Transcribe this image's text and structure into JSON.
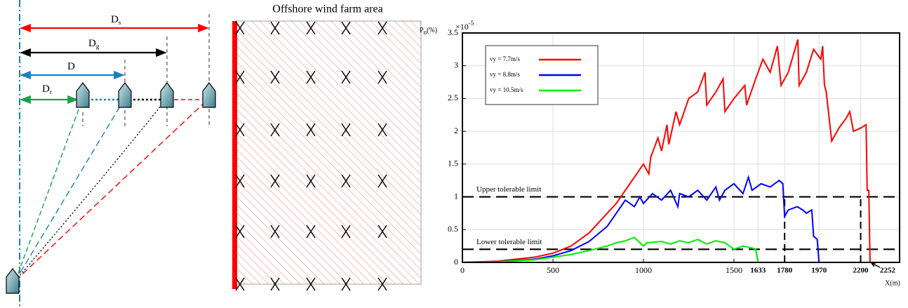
{
  "diagram": {
    "area_label": "Offshore wind farm area",
    "distances": [
      {
        "symbol": "D",
        "sub": "s"
      },
      {
        "symbol": "D",
        "sub": "g"
      },
      {
        "symbol": "D",
        "sub": ""
      },
      {
        "symbol": "D",
        "sub": "r"
      }
    ]
  },
  "chart_data": {
    "type": "line",
    "ylabel": {
      "symbol": "P",
      "sub": "n",
      "unit": "(%)"
    },
    "xlabel": "X(m)",
    "y_multiplier": {
      "base": "×10",
      "exponent": "-5"
    },
    "xlim": [
      0,
      2415
    ],
    "ylim": [
      0,
      3.5
    ],
    "xticks": [
      0,
      500,
      1000,
      1500,
      1633,
      1780,
      1970,
      2200
    ],
    "yticks": [
      0,
      0.5,
      1,
      1.5,
      2,
      2.5,
      3,
      3.5
    ],
    "grid": true,
    "legend": "top-left",
    "annotation": {
      "value": 2252,
      "label": "2252"
    },
    "hlines": [
      {
        "value": 1,
        "label": "Upper tolerable limit"
      },
      {
        "value": 0.2,
        "label": "Lower tolerable limit"
      }
    ],
    "vlines": [
      1780,
      2200
    ],
    "series": [
      {
        "name": "vy = 7.7m/s",
        "color": "#ff0000",
        "x": [
          0,
          200,
          400,
          500,
          600,
          700,
          800,
          850,
          900,
          950,
          1000,
          1030,
          1040,
          1080,
          1100,
          1130,
          1140,
          1180,
          1200,
          1250,
          1300,
          1340,
          1350,
          1400,
          1440,
          1450,
          1500,
          1560,
          1570,
          1620,
          1660,
          1700,
          1740,
          1760,
          1800,
          1853,
          1860,
          1900,
          1940,
          1980,
          1990,
          2000,
          2010,
          2040,
          2080,
          2120,
          2140,
          2160,
          2200,
          2230,
          2236,
          2245,
          2252
        ],
        "values": [
          0,
          0.02,
          0.08,
          0.14,
          0.25,
          0.45,
          0.75,
          0.9,
          1.1,
          1.3,
          1.5,
          1.35,
          1.6,
          1.9,
          1.7,
          2.1,
          1.8,
          2.3,
          2.1,
          2.5,
          2.6,
          2.9,
          2.4,
          2.6,
          2.8,
          2.3,
          2.5,
          2.7,
          2.4,
          2.8,
          3.1,
          2.9,
          3.3,
          2.7,
          2.9,
          3.4,
          2.7,
          2.9,
          3.25,
          3.1,
          3.3,
          2.7,
          2.6,
          1.85,
          2.05,
          2.2,
          2.3,
          2.0,
          2.05,
          2.1,
          1.1,
          1.1,
          0
        ]
      },
      {
        "name": "vy = 8.8m/s",
        "color": "#0000ff",
        "x": [
          0,
          200,
          400,
          500,
          600,
          700,
          800,
          850,
          900,
          950,
          980,
          1000,
          1050,
          1100,
          1150,
          1190,
          1200,
          1250,
          1300,
          1350,
          1400,
          1420,
          1450,
          1500,
          1550,
          1580,
          1600,
          1650,
          1700,
          1750,
          1770,
          1780,
          1800,
          1850,
          1880,
          1900,
          1930,
          1940,
          1960,
          1970
        ],
        "values": [
          0,
          0.01,
          0.05,
          0.1,
          0.18,
          0.32,
          0.55,
          0.75,
          0.95,
          0.85,
          1.0,
          0.9,
          1.05,
          0.95,
          1.1,
          0.85,
          1.05,
          1.0,
          1.1,
          0.95,
          1.15,
          0.95,
          1.1,
          1.2,
          1.05,
          1.3,
          1.1,
          1.2,
          1.15,
          1.25,
          1.2,
          0.7,
          0.8,
          0.85,
          0.8,
          0.75,
          0.8,
          0.4,
          0.35,
          0
        ]
      },
      {
        "name": "vy = 10.5m/s",
        "color": "#00ee00",
        "x": [
          0,
          200,
          400,
          600,
          700,
          800,
          850,
          900,
          950,
          1000,
          1020,
          1100,
          1150,
          1200,
          1250,
          1300,
          1350,
          1400,
          1450,
          1500,
          1550,
          1600,
          1620,
          1633
        ],
        "values": [
          0,
          0.01,
          0.04,
          0.12,
          0.18,
          0.25,
          0.3,
          0.33,
          0.38,
          0.25,
          0.3,
          0.32,
          0.28,
          0.33,
          0.3,
          0.35,
          0.28,
          0.33,
          0.3,
          0.2,
          0.25,
          0.22,
          0.2,
          0
        ]
      }
    ]
  }
}
